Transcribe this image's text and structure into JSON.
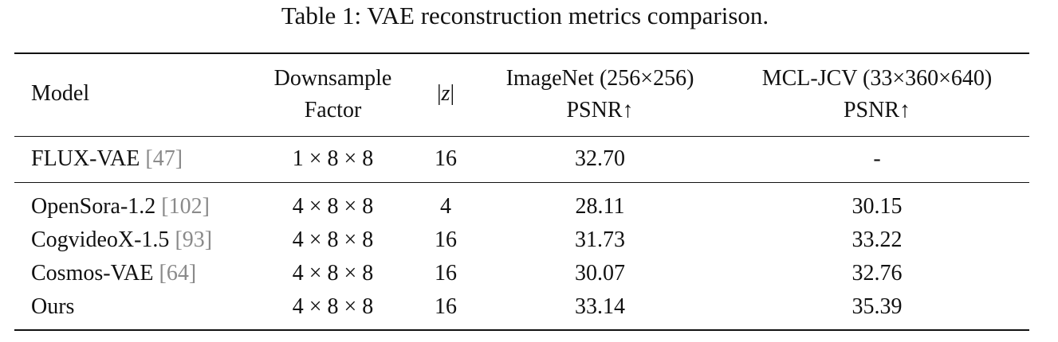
{
  "caption": "Table 1: VAE reconstruction metrics comparison.",
  "headers": {
    "model": "Model",
    "downsample_line1": "Downsample",
    "downsample_line2": "Factor",
    "z_bar_left": "|",
    "z_symbol": "z",
    "z_bar_right": "|",
    "imagenet_line1": "ImageNet (256×256)",
    "imagenet_line2": "PSNR↑",
    "mcl_line1": "MCL-JCV (33×360×640)",
    "mcl_line2": "PSNR↑"
  },
  "rows": [
    {
      "model": "FLUX-VAE ",
      "cite_open": "[",
      "cite": "47",
      "cite_close": "]",
      "downsample": "1 × 8 × 8",
      "z": "16",
      "imagenet": "32.70",
      "mcl": "-"
    },
    {
      "model": "OpenSora-1.2 ",
      "cite_open": "[",
      "cite": "102",
      "cite_close": "]",
      "downsample": "4 × 8 × 8",
      "z": "4",
      "imagenet": "28.11",
      "mcl": "30.15"
    },
    {
      "model": "CogvideoX-1.5 ",
      "cite_open": "[",
      "cite": "93",
      "cite_close": "]",
      "downsample": "4 × 8 × 8",
      "z": "16",
      "imagenet": "31.73",
      "mcl": "33.22"
    },
    {
      "model": "Cosmos-VAE ",
      "cite_open": "[",
      "cite": "64",
      "cite_close": "]",
      "downsample": "4 × 8 × 8",
      "z": "16",
      "imagenet": "30.07",
      "mcl": "32.76"
    },
    {
      "model": "Ours",
      "cite_open": "",
      "cite": "",
      "cite_close": "",
      "downsample": "4 × 8 × 8",
      "z": "16",
      "imagenet": "33.14",
      "mcl": "35.39"
    }
  ]
}
